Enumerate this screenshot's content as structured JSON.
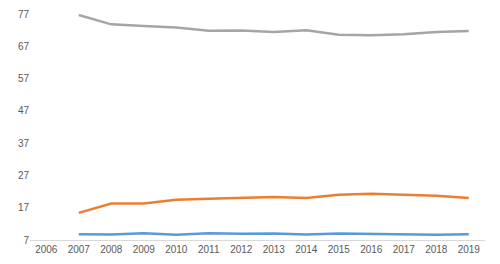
{
  "chart_data": {
    "type": "line",
    "categories": [
      "2006",
      "2007",
      "2008",
      "2009",
      "2010",
      "2011",
      "2012",
      "2013",
      "2014",
      "2015",
      "2016",
      "2017",
      "2018",
      "2019"
    ],
    "series": [
      {
        "color": "#a5a5a5",
        "values": [
          null,
          76.7,
          73.8,
          73.3,
          72.8,
          71.8,
          71.9,
          71.4,
          72.0,
          70.6,
          70.4,
          70.7,
          71.4,
          71.7
        ]
      },
      {
        "color": "#ed7d31",
        "values": [
          null,
          15.4,
          18.3,
          18.3,
          19.5,
          19.8,
          20.0,
          20.3,
          20.0,
          21.0,
          21.3,
          21.1,
          20.7,
          20.0
        ]
      },
      {
        "color": "#5b9bd5",
        "values": [
          null,
          8.8,
          8.7,
          9.1,
          8.6,
          9.1,
          8.9,
          9.0,
          8.7,
          9.0,
          8.9,
          8.9,
          8.6,
          8.8
        ]
      }
    ],
    "ylim": [
      7,
      77
    ],
    "yticks": [
      7,
      17,
      27,
      37,
      47,
      57,
      67,
      77
    ],
    "grid": false
  }
}
